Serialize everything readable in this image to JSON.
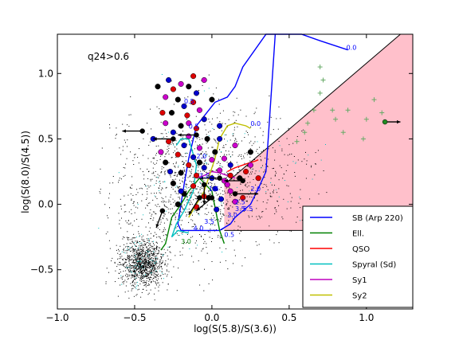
{
  "chart_data": {
    "type": "scatter",
    "title": "",
    "annotation": "q24>0.6",
    "xlabel": "log(S(5.8)/S(3.6))",
    "ylabel": "log(S(8.0)/S(4.5))",
    "xlim": [
      -1.0,
      1.3
    ],
    "ylim": [
      -0.8,
      1.3
    ],
    "xticks": [
      -1.0,
      -0.5,
      0.0,
      0.5,
      1.0
    ],
    "yticks": [
      -0.5,
      0.0,
      0.5,
      1.0
    ],
    "xtick_labels": [
      "−1.0",
      "−0.5",
      "0.0",
      "0.5",
      "1.0"
    ],
    "ytick_labels": [
      "−0.5",
      "0.0",
      "0.5",
      "1.0"
    ],
    "grid": false,
    "legend_position": "lower-right",
    "agn_wedge": {
      "color": "#ffc0cb",
      "vertices": [
        [
          0.08,
          0.15
        ],
        [
          0.08,
          -0.2
        ],
        [
          1.3,
          -0.2
        ],
        [
          1.3,
          1.3
        ],
        [
          1.22,
          1.3
        ]
      ]
    },
    "legend": [
      {
        "name": "SB (Arp 220)",
        "color": "#0000ff"
      },
      {
        "name": "Ell.",
        "color": "#008000"
      },
      {
        "name": "QSO",
        "color": "#ff0000"
      },
      {
        "name": "Spyral (Sd)",
        "color": "#00bfbf"
      },
      {
        "name": "Sy1",
        "color": "#bf00bf"
      },
      {
        "name": "Sy2",
        "color": "#bfbf00"
      }
    ],
    "templates": [
      {
        "name": "SB (Arp 220)",
        "color": "#0000ff",
        "x": [
          0.88,
          0.7,
          0.58,
          0.35,
          0.2,
          0.15,
          0.1,
          0.02,
          -0.1,
          -0.15,
          -0.18,
          -0.2,
          -0.22,
          -0.2,
          -0.1,
          0.05,
          0.12,
          0.15,
          0.25,
          0.3,
          0.35,
          0.41
        ],
        "y": [
          1.18,
          1.25,
          1.3,
          1.3,
          1.05,
          0.9,
          0.82,
          0.78,
          0.6,
          0.35,
          0.15,
          0.0,
          -0.15,
          -0.2,
          -0.2,
          -0.2,
          -0.15,
          -0.1,
          0.0,
          0.12,
          0.25,
          1.3
        ]
      },
      {
        "name": "Ell.",
        "color": "#008000",
        "x": [
          -0.33,
          -0.3,
          -0.26,
          -0.2,
          -0.15,
          -0.08,
          0.0,
          0.05,
          0.08
        ],
        "y": [
          -0.35,
          -0.3,
          -0.1,
          0.0,
          0.1,
          0.2,
          0.1,
          -0.2,
          -0.3
        ]
      },
      {
        "name": "QSO",
        "color": "#ff0000",
        "x": [
          0.1,
          0.15,
          0.2,
          0.25,
          0.28,
          0.3
        ],
        "y": [
          0.25,
          0.28,
          0.3,
          0.32,
          0.33,
          0.34
        ]
      },
      {
        "name": "Spyral (Sd)",
        "color": "#00bfbf",
        "x": [
          -0.23,
          -0.2,
          -0.15,
          -0.1,
          -0.12,
          -0.18,
          -0.23,
          -0.26,
          -0.22,
          -0.15
        ],
        "y": [
          0.45,
          0.5,
          0.5,
          0.3,
          0.1,
          -0.05,
          -0.15,
          -0.25,
          -0.2,
          -0.22
        ]
      },
      {
        "name": "Sy1",
        "color": "#bf00bf",
        "x": [
          -0.1,
          -0.05,
          0.0,
          0.05,
          0.1,
          0.15
        ],
        "y": [
          0.2,
          0.22,
          0.25,
          0.24,
          0.22,
          0.2
        ]
      },
      {
        "name": "Sy2",
        "color": "#bfbf00",
        "x": [
          -0.15,
          -0.05,
          0.02,
          0.05,
          0.1,
          0.15,
          0.22,
          0.25
        ],
        "y": [
          -0.1,
          0.1,
          0.35,
          0.5,
          0.6,
          0.62,
          0.6,
          0.58
        ]
      }
    ],
    "redshift_labels": [
      {
        "text": "0.0",
        "x": 0.87,
        "y": 1.18,
        "color": "#0000ff"
      },
      {
        "text": "0.0",
        "x": 0.25,
        "y": 0.6,
        "color": "#0000ff"
      },
      {
        "text": "0.5",
        "x": -0.18,
        "y": 0.77,
        "color": "#0000ff"
      },
      {
        "text": "0.5",
        "x": -0.15,
        "y": 0.58,
        "color": "#0000ff"
      },
      {
        "text": "1.0",
        "x": -0.08,
        "y": 0.2,
        "color": "#0000ff"
      },
      {
        "text": "1.5",
        "x": -0.02,
        "y": 0.1,
        "color": "#0000ff"
      },
      {
        "text": "2.0",
        "x": -0.1,
        "y": 0.35,
        "color": "#0000ff"
      },
      {
        "text": "2.0",
        "x": 0.25,
        "y": 0.1,
        "color": "#0000ff"
      },
      {
        "text": "2.5",
        "x": 0.15,
        "y": 0.0,
        "color": "#0000ff"
      },
      {
        "text": "3.0",
        "x": 0.1,
        "y": -0.1,
        "color": "#0000ff"
      },
      {
        "text": "3.5",
        "x": -0.05,
        "y": -0.15,
        "color": "#0000ff"
      },
      {
        "text": "4.0",
        "x": -0.12,
        "y": -0.2,
        "color": "#0000ff"
      },
      {
        "text": "0.5",
        "x": 0.08,
        "y": -0.25,
        "color": "#0000ff"
      },
      {
        "text": "3.0",
        "x": -0.2,
        "y": -0.3,
        "color": "#008000"
      },
      {
        "text": "3.5",
        "x": 0.15,
        "y": -0.05,
        "color": "#0000ff"
      },
      {
        "text": "5.5",
        "x": 0.2,
        "y": -0.05,
        "color": "#0000ff"
      }
    ],
    "large_sources": {
      "colors": [
        "#0000cc",
        "#cc00cc",
        "#000000",
        "#dd0000"
      ],
      "points": [
        [
          -0.28,
          0.95
        ],
        [
          -0.2,
          0.92
        ],
        [
          -0.15,
          0.9
        ],
        [
          -0.25,
          0.88
        ],
        [
          -0.1,
          0.85
        ],
        [
          -0.3,
          0.82
        ],
        [
          -0.22,
          0.8
        ],
        [
          -0.12,
          0.78
        ],
        [
          -0.18,
          0.75
        ],
        [
          -0.08,
          0.72
        ],
        [
          -0.26,
          0.7
        ],
        [
          -0.16,
          0.68
        ],
        [
          -0.05,
          0.65
        ],
        [
          -0.3,
          0.62
        ],
        [
          -0.2,
          0.6
        ],
        [
          -0.1,
          0.58
        ],
        [
          -0.25,
          0.55
        ],
        [
          -0.15,
          0.52
        ],
        [
          -0.03,
          0.5
        ],
        [
          -0.28,
          0.48
        ],
        [
          -0.18,
          0.45
        ],
        [
          -0.08,
          0.43
        ],
        [
          0.02,
          0.4
        ],
        [
          -0.22,
          0.38
        ],
        [
          -0.12,
          0.36
        ],
        [
          0.0,
          0.34
        ],
        [
          -0.3,
          0.32
        ],
        [
          -0.15,
          0.3
        ],
        [
          -0.05,
          0.28
        ],
        [
          0.05,
          0.26
        ],
        [
          -0.2,
          0.24
        ],
        [
          -0.1,
          0.22
        ],
        [
          0.0,
          0.2
        ],
        [
          0.08,
          0.18
        ],
        [
          -0.25,
          0.16
        ],
        [
          -0.12,
          0.14
        ],
        [
          0.02,
          0.12
        ],
        [
          0.12,
          0.1
        ],
        [
          -0.18,
          0.08
        ],
        [
          -0.05,
          0.06
        ],
        [
          0.06,
          0.04
        ],
        [
          0.15,
          0.02
        ],
        [
          -0.22,
          0.0
        ],
        [
          -0.1,
          -0.02
        ],
        [
          0.03,
          -0.04
        ],
        [
          0.1,
          0.15
        ],
        [
          0.18,
          0.2
        ],
        [
          0.22,
          0.25
        ],
        [
          0.12,
          0.3
        ],
        [
          0.08,
          0.35
        ],
        [
          -0.35,
          0.9
        ],
        [
          -0.32,
          0.7
        ],
        [
          -0.38,
          0.5
        ],
        [
          -0.05,
          0.95
        ],
        [
          0.0,
          0.8
        ],
        [
          -0.12,
          0.98
        ],
        [
          0.05,
          0.6
        ],
        [
          0.15,
          0.45
        ],
        [
          0.25,
          0.4
        ],
        [
          0.3,
          0.2
        ],
        [
          -0.27,
          0.25
        ],
        [
          -0.33,
          0.4
        ],
        [
          -0.02,
          0.05
        ],
        [
          0.2,
          0.05
        ],
        [
          0.05,
          0.5
        ],
        [
          -0.15,
          0.62
        ],
        [
          -0.08,
          0.32
        ],
        [
          0.12,
          0.22
        ],
        [
          -0.2,
          0.1
        ],
        [
          0.25,
          0.3
        ]
      ]
    },
    "upper_limit_sources": [
      {
        "x": -0.45,
        "y": 0.56,
        "arrow": [
          -0.58,
          0.56
        ]
      },
      {
        "x": -0.25,
        "y": 0.5,
        "arrow": [
          -0.38,
          0.5
        ]
      },
      {
        "x": -0.1,
        "y": 0.53,
        "arrow": [
          -0.22,
          0.53
        ]
      },
      {
        "x": 0.05,
        "y": 0.2,
        "arrow": [
          -0.08,
          0.2
        ]
      },
      {
        "x": 0.15,
        "y": 0.08,
        "arrow": [
          0.3,
          0.08
        ]
      },
      {
        "x": 0.2,
        "y": 0.18,
        "arrow": [
          0.08,
          0.18
        ]
      },
      {
        "x": -0.32,
        "y": -0.05,
        "arrow": [
          -0.36,
          -0.18
        ]
      },
      {
        "x": -0.05,
        "y": 0.15,
        "arrow": [
          -0.05,
          0.0
        ]
      },
      {
        "x": -0.08,
        "y": 0.05,
        "arrow": [
          -0.15,
          -0.08
        ]
      },
      {
        "x": 0.0,
        "y": 0.05,
        "arrow": [
          -0.1,
          -0.05
        ]
      },
      {
        "x": 1.12,
        "y": 0.63,
        "arrow": [
          1.22,
          0.63
        ]
      }
    ],
    "ir_excess_markers": {
      "color": "#66aa66",
      "points": [
        [
          0.7,
          0.85
        ],
        [
          0.7,
          1.05
        ],
        [
          0.72,
          0.95
        ],
        [
          0.78,
          0.72
        ],
        [
          0.62,
          0.62
        ],
        [
          0.6,
          0.55
        ],
        [
          0.8,
          0.65
        ],
        [
          0.85,
          0.55
        ],
        [
          1.0,
          0.65
        ],
        [
          1.05,
          0.8
        ],
        [
          0.98,
          0.5
        ],
        [
          0.88,
          0.72
        ],
        [
          0.66,
          0.72
        ],
        [
          0.55,
          0.48
        ],
        [
          1.1,
          0.7
        ]
      ]
    },
    "faint_population": {
      "color": "#000000",
      "center_x": -0.45,
      "center_y": -0.45,
      "count": 2600,
      "note_color_cyan": "#00bfbf"
    }
  }
}
